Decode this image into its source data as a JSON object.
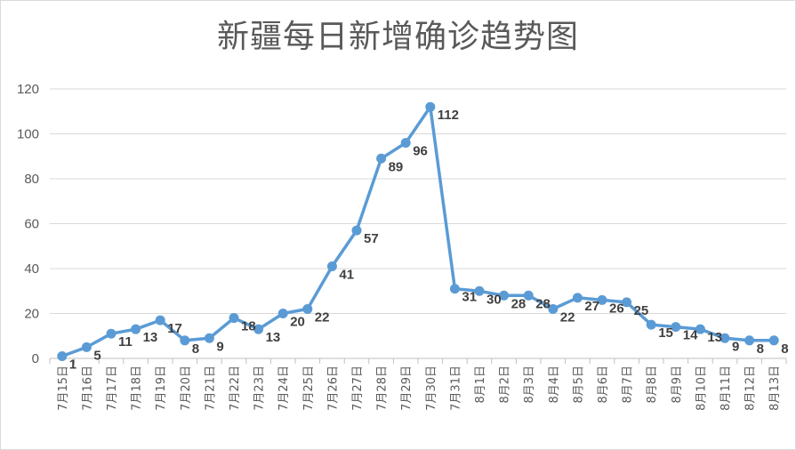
{
  "chart_data": {
    "type": "line",
    "title": "新疆每日新增确诊趋势图",
    "xlabel": "",
    "ylabel": "",
    "ylim": [
      0,
      120
    ],
    "yticks": [
      0,
      20,
      40,
      60,
      80,
      100,
      120
    ],
    "grid": "horizontal",
    "legend": "none",
    "color": "#5b9bd5",
    "categories": [
      "7月15日",
      "7月16日",
      "7月17日",
      "7月18日",
      "7月19日",
      "7月20日",
      "7月21日",
      "7月22日",
      "7月23日",
      "7月24日",
      "7月25日",
      "7月26日",
      "7月27日",
      "7月28日",
      "7月29日",
      "7月30日",
      "7月31日",
      "8月1日",
      "8月2日",
      "8月3日",
      "8月4日",
      "8月5日",
      "8月6日",
      "8月7日",
      "8月8日",
      "8月9日",
      "8月10日",
      "8月11日",
      "8月12日",
      "8月13日"
    ],
    "values": [
      1,
      5,
      11,
      13,
      17,
      8,
      9,
      18,
      13,
      20,
      22,
      41,
      57,
      89,
      96,
      112,
      31,
      30,
      28,
      28,
      22,
      27,
      26,
      25,
      15,
      14,
      13,
      9,
      8,
      8
    ],
    "data_labels": [
      "1",
      "5",
      "11",
      "13",
      "17",
      "8",
      "9",
      "18",
      "13",
      "20",
      "22",
      "41",
      "57",
      "89",
      "96",
      "112",
      "31",
      "30",
      "28",
      "28",
      "22",
      "27",
      "26",
      "25",
      "15",
      "14",
      "13",
      "9",
      "8",
      "8"
    ]
  }
}
